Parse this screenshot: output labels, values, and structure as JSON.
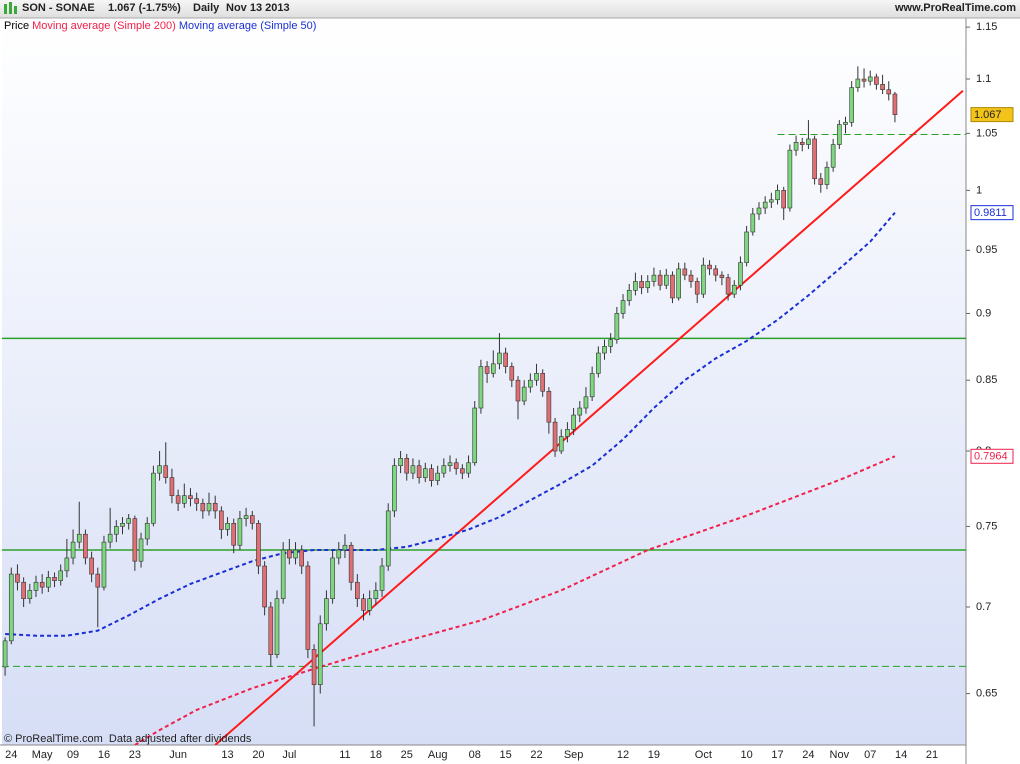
{
  "header": {
    "symbol": "SON - SONAE",
    "quote": "1.067 (-1.75%)",
    "period": "Daily",
    "date": "Nov 13 2013",
    "site": "www.ProRealTime.com"
  },
  "footer": "© ProRealTime.com  Data adjusted after dividends",
  "chart_data": {
    "type": "candlestick",
    "log_scale": true,
    "price_label": "Price",
    "up_color": "#7ed67e",
    "down_color": "#e06f74",
    "ylim": [
      0.622,
      1.159
    ],
    "yticks": [
      0.65,
      0.7,
      0.75,
      0.8,
      0.85,
      0.9,
      0.95,
      1,
      1.05,
      1.1,
      1.15
    ],
    "categories": [
      null,
      "24",
      null,
      null,
      null,
      null,
      "May",
      null,
      null,
      null,
      null,
      "09",
      null,
      null,
      null,
      null,
      "16",
      null,
      null,
      null,
      null,
      "23",
      null,
      null,
      null,
      null,
      null,
      null,
      "Jun",
      null,
      null,
      null,
      null,
      null,
      null,
      null,
      "13",
      null,
      null,
      null,
      null,
      "20",
      null,
      null,
      null,
      null,
      "Jul",
      null,
      null,
      null,
      null,
      null,
      null,
      null,
      null,
      "11",
      null,
      null,
      null,
      null,
      "18",
      null,
      null,
      null,
      null,
      "25",
      null,
      null,
      null,
      null,
      "Aug",
      null,
      null,
      null,
      null,
      null,
      "08",
      null,
      null,
      null,
      null,
      "15",
      null,
      null,
      null,
      null,
      "22",
      null,
      null,
      null,
      null,
      null,
      "Sep",
      null,
      null,
      null,
      null,
      null,
      null,
      null,
      "12",
      null,
      null,
      null,
      null,
      "19",
      null,
      null,
      null,
      null,
      null,
      null,
      null,
      "Oct",
      null,
      null,
      null,
      null,
      null,
      null,
      "10",
      null,
      null,
      null,
      null,
      "17",
      null,
      null,
      null,
      null,
      "24",
      null,
      null,
      null,
      null,
      "Nov",
      null,
      null,
      null,
      null,
      "07",
      null,
      null,
      null,
      null,
      "14",
      null,
      null,
      null,
      null,
      "21",
      null,
      null,
      null,
      null,
      null
    ],
    "ohlc": [
      [
        0.665,
        0.682,
        0.66,
        0.68
      ],
      [
        0.68,
        0.724,
        0.678,
        0.72
      ],
      [
        0.72,
        0.726,
        0.71,
        0.715
      ],
      [
        0.715,
        0.718,
        0.7,
        0.705
      ],
      [
        0.705,
        0.714,
        0.702,
        0.71
      ],
      [
        0.71,
        0.719,
        0.706,
        0.715
      ],
      [
        0.715,
        0.72,
        0.708,
        0.712
      ],
      [
        0.712,
        0.722,
        0.709,
        0.718
      ],
      [
        0.718,
        0.721,
        0.712,
        0.716
      ],
      [
        0.716,
        0.726,
        0.713,
        0.722
      ],
      [
        0.722,
        0.742,
        0.718,
        0.73
      ],
      [
        0.73,
        0.748,
        0.726,
        0.74
      ],
      [
        0.74,
        0.766,
        0.736,
        0.745
      ],
      [
        0.745,
        0.748,
        0.726,
        0.73
      ],
      [
        0.73,
        0.734,
        0.715,
        0.72
      ],
      [
        0.72,
        0.724,
        0.688,
        0.712
      ],
      [
        0.712,
        0.744,
        0.71,
        0.74
      ],
      [
        0.74,
        0.762,
        0.736,
        0.745
      ],
      [
        0.745,
        0.754,
        0.74,
        0.75
      ],
      [
        0.75,
        0.756,
        0.745,
        0.752
      ],
      [
        0.752,
        0.758,
        0.748,
        0.755
      ],
      [
        0.755,
        0.757,
        0.722,
        0.728
      ],
      [
        0.728,
        0.746,
        0.724,
        0.742
      ],
      [
        0.742,
        0.756,
        0.738,
        0.752
      ],
      [
        0.752,
        0.79,
        0.75,
        0.785
      ],
      [
        0.785,
        0.8,
        0.78,
        0.79
      ],
      [
        0.79,
        0.806,
        0.778,
        0.782
      ],
      [
        0.782,
        0.788,
        0.765,
        0.77
      ],
      [
        0.77,
        0.774,
        0.76,
        0.765
      ],
      [
        0.765,
        0.778,
        0.762,
        0.77
      ],
      [
        0.77,
        0.775,
        0.763,
        0.768
      ],
      [
        0.768,
        0.772,
        0.76,
        0.765
      ],
      [
        0.765,
        0.768,
        0.755,
        0.76
      ],
      [
        0.76,
        0.772,
        0.757,
        0.765
      ],
      [
        0.765,
        0.77,
        0.755,
        0.76
      ],
      [
        0.76,
        0.763,
        0.742,
        0.748
      ],
      [
        0.748,
        0.756,
        0.744,
        0.752
      ],
      [
        0.752,
        0.755,
        0.733,
        0.738
      ],
      [
        0.738,
        0.76,
        0.735,
        0.755
      ],
      [
        0.755,
        0.762,
        0.75,
        0.757
      ],
      [
        0.757,
        0.76,
        0.748,
        0.752
      ],
      [
        0.752,
        0.754,
        0.72,
        0.725
      ],
      [
        0.725,
        0.728,
        0.695,
        0.7
      ],
      [
        0.7,
        0.703,
        0.665,
        0.672
      ],
      [
        0.672,
        0.71,
        0.67,
        0.705
      ],
      [
        0.705,
        0.74,
        0.702,
        0.735
      ],
      [
        0.735,
        0.742,
        0.726,
        0.73
      ],
      [
        0.73,
        0.74,
        0.726,
        0.735
      ],
      [
        0.735,
        0.738,
        0.72,
        0.725
      ],
      [
        0.725,
        0.728,
        0.67,
        0.675
      ],
      [
        0.675,
        0.678,
        0.632,
        0.655
      ],
      [
        0.655,
        0.695,
        0.65,
        0.69
      ],
      [
        0.69,
        0.71,
        0.686,
        0.705
      ],
      [
        0.705,
        0.735,
        0.702,
        0.73
      ],
      [
        0.73,
        0.74,
        0.726,
        0.735
      ],
      [
        0.735,
        0.745,
        0.73,
        0.738
      ],
      [
        0.738,
        0.74,
        0.71,
        0.715
      ],
      [
        0.715,
        0.72,
        0.7,
        0.705
      ],
      [
        0.705,
        0.708,
        0.692,
        0.698
      ],
      [
        0.698,
        0.71,
        0.695,
        0.705
      ],
      [
        0.705,
        0.715,
        0.701,
        0.71
      ],
      [
        0.71,
        0.73,
        0.706,
        0.725
      ],
      [
        0.725,
        0.765,
        0.722,
        0.76
      ],
      [
        0.76,
        0.795,
        0.756,
        0.79
      ],
      [
        0.79,
        0.8,
        0.785,
        0.795
      ],
      [
        0.795,
        0.798,
        0.78,
        0.785
      ],
      [
        0.785,
        0.795,
        0.781,
        0.79
      ],
      [
        0.79,
        0.794,
        0.778,
        0.782
      ],
      [
        0.782,
        0.792,
        0.779,
        0.788
      ],
      [
        0.788,
        0.791,
        0.776,
        0.78
      ],
      [
        0.78,
        0.79,
        0.777,
        0.785
      ],
      [
        0.785,
        0.795,
        0.782,
        0.79
      ],
      [
        0.79,
        0.797,
        0.786,
        0.792
      ],
      [
        0.792,
        0.795,
        0.784,
        0.788
      ],
      [
        0.788,
        0.791,
        0.781,
        0.785
      ],
      [
        0.785,
        0.797,
        0.782,
        0.792
      ],
      [
        0.792,
        0.835,
        0.79,
        0.83
      ],
      [
        0.83,
        0.865,
        0.826,
        0.86
      ],
      [
        0.86,
        0.864,
        0.848,
        0.855
      ],
      [
        0.855,
        0.872,
        0.852,
        0.862
      ],
      [
        0.862,
        0.885,
        0.858,
        0.87
      ],
      [
        0.87,
        0.874,
        0.855,
        0.86
      ],
      [
        0.86,
        0.863,
        0.845,
        0.85
      ],
      [
        0.85,
        0.853,
        0.822,
        0.835
      ],
      [
        0.835,
        0.85,
        0.832,
        0.845
      ],
      [
        0.845,
        0.855,
        0.841,
        0.85
      ],
      [
        0.85,
        0.862,
        0.846,
        0.855
      ],
      [
        0.855,
        0.858,
        0.838,
        0.842
      ],
      [
        0.842,
        0.845,
        0.812,
        0.82
      ],
      [
        0.82,
        0.823,
        0.796,
        0.8
      ],
      [
        0.8,
        0.815,
        0.798,
        0.81
      ],
      [
        0.81,
        0.82,
        0.806,
        0.815
      ],
      [
        0.815,
        0.83,
        0.811,
        0.825
      ],
      [
        0.825,
        0.835,
        0.82,
        0.83
      ],
      [
        0.83,
        0.845,
        0.826,
        0.838
      ],
      [
        0.838,
        0.86,
        0.835,
        0.855
      ],
      [
        0.855,
        0.875,
        0.852,
        0.87
      ],
      [
        0.87,
        0.88,
        0.865,
        0.875
      ],
      [
        0.875,
        0.885,
        0.87,
        0.88
      ],
      [
        0.88,
        0.905,
        0.877,
        0.9
      ],
      [
        0.9,
        0.915,
        0.896,
        0.91
      ],
      [
        0.91,
        0.923,
        0.906,
        0.918
      ],
      [
        0.918,
        0.932,
        0.914,
        0.925
      ],
      [
        0.925,
        0.93,
        0.915,
        0.92
      ],
      [
        0.92,
        0.93,
        0.916,
        0.925
      ],
      [
        0.925,
        0.936,
        0.921,
        0.93
      ],
      [
        0.93,
        0.934,
        0.918,
        0.922
      ],
      [
        0.922,
        0.935,
        0.919,
        0.93
      ],
      [
        0.93,
        0.933,
        0.908,
        0.912
      ],
      [
        0.912,
        0.94,
        0.91,
        0.935
      ],
      [
        0.935,
        0.94,
        0.926,
        0.93
      ],
      [
        0.93,
        0.934,
        0.92,
        0.925
      ],
      [
        0.925,
        0.928,
        0.908,
        0.915
      ],
      [
        0.915,
        0.944,
        0.912,
        0.938
      ],
      [
        0.938,
        0.942,
        0.93,
        0.935
      ],
      [
        0.935,
        0.938,
        0.925,
        0.93
      ],
      [
        0.93,
        0.933,
        0.922,
        0.928
      ],
      [
        0.928,
        0.931,
        0.91,
        0.915
      ],
      [
        0.915,
        0.926,
        0.912,
        0.922
      ],
      [
        0.922,
        0.945,
        0.918,
        0.94
      ],
      [
        0.94,
        0.97,
        0.937,
        0.965
      ],
      [
        0.965,
        0.985,
        0.962,
        0.98
      ],
      [
        0.98,
        0.99,
        0.975,
        0.985
      ],
      [
        0.985,
        0.995,
        0.98,
        0.99
      ],
      [
        0.99,
        0.998,
        0.985,
        0.992
      ],
      [
        0.992,
        1.005,
        0.988,
        1.0
      ],
      [
        1.0,
        1.003,
        0.975,
        0.985
      ],
      [
        0.985,
        1.04,
        0.982,
        1.035
      ],
      [
        1.035,
        1.048,
        1.03,
        1.042
      ],
      [
        1.042,
        1.046,
        1.034,
        1.04
      ],
      [
        1.04,
        1.062,
        1.036,
        1.045
      ],
      [
        1.045,
        1.048,
        1.005,
        1.01
      ],
      [
        1.01,
        1.015,
        0.998,
        1.005
      ],
      [
        1.005,
        1.025,
        1.001,
        1.02
      ],
      [
        1.02,
        1.045,
        1.016,
        1.04
      ],
      [
        1.04,
        1.062,
        1.036,
        1.058
      ],
      [
        1.058,
        1.065,
        1.05,
        1.06
      ],
      [
        1.06,
        1.098,
        1.056,
        1.092
      ],
      [
        1.092,
        1.112,
        1.088,
        1.1
      ],
      [
        1.1,
        1.11,
        1.092,
        1.098
      ],
      [
        1.098,
        1.108,
        1.094,
        1.102
      ],
      [
        1.102,
        1.105,
        1.09,
        1.095
      ],
      [
        1.095,
        1.104,
        1.086,
        1.09
      ],
      [
        1.09,
        1.098,
        1.08,
        1.086
      ],
      [
        1.086,
        1.088,
        1.06,
        1.067
      ]
    ],
    "series": [
      {
        "name": "Moving average (Simple 200)",
        "color": "#f0204a",
        "dash": true,
        "x": [
          21,
          25,
          31,
          40,
          51,
          64,
          77,
          90,
          104,
          120,
          136,
          144
        ],
        "values": [
          0.622,
          0.63,
          0.641,
          0.653,
          0.665,
          0.679,
          0.692,
          0.71,
          0.735,
          0.757,
          0.782,
          0.7964
        ]
      },
      {
        "name": "Moving average (Simple 50)",
        "color": "#1a2fd6",
        "dash": true,
        "x": [
          0,
          5,
          10,
          15,
          20,
          25,
          30,
          35,
          40,
          45,
          50,
          55,
          60,
          65,
          70,
          75,
          80,
          85,
          90,
          95,
          100,
          105,
          110,
          115,
          120,
          125,
          130,
          135,
          140,
          144
        ],
        "values": [
          0.684,
          0.683,
          0.683,
          0.686,
          0.695,
          0.705,
          0.714,
          0.721,
          0.728,
          0.733,
          0.735,
          0.735,
          0.735,
          0.737,
          0.742,
          0.748,
          0.756,
          0.767,
          0.778,
          0.79,
          0.808,
          0.83,
          0.85,
          0.866,
          0.879,
          0.895,
          0.914,
          0.935,
          0.957,
          0.9811
        ]
      }
    ],
    "trendline": {
      "x": [
        34,
        155
      ],
      "values": [
        0.622,
        1.089
      ],
      "color": "#ff1a1a"
    },
    "hlines": [
      {
        "value": 0.881,
        "color": "#2aa02a",
        "dash": false
      },
      {
        "value": 0.735,
        "color": "#2aa02a",
        "dash": false
      },
      {
        "value": 0.6653,
        "color": "#2aa02a",
        "dash": true
      },
      {
        "value": 1.049,
        "color": "#2aa02a",
        "dash": true,
        "x_from": 125
      }
    ]
  }
}
